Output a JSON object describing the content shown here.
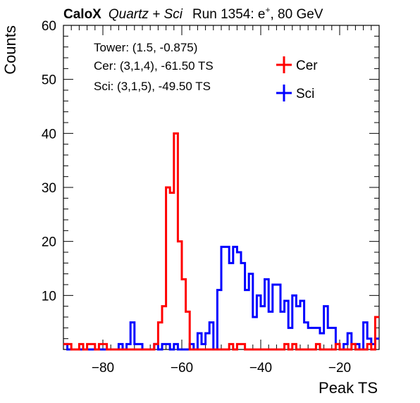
{
  "chart_data": {
    "type": "histogram",
    "title": {
      "experiment": "CaloX",
      "config": "Quartz + Sci",
      "run_prefix": "Run 1354: e",
      "superscript": "+",
      "run_suffix": ", 80 GeV"
    },
    "xlabel": "Peak TS",
    "ylabel": "Counts",
    "xlim": [
      -90,
      -10
    ],
    "ylim": [
      0,
      60
    ],
    "x_ticks": [
      -80,
      -60,
      -40,
      -20
    ],
    "x_tick_labels": [
      "−80",
      "−60",
      "−40",
      "−20"
    ],
    "y_ticks": [
      10,
      20,
      30,
      40,
      50,
      60
    ],
    "y_tick_labels": [
      "10",
      "20",
      "30",
      "40",
      "50",
      "60"
    ],
    "grid": false,
    "legend_position": "top-right",
    "annotations": [
      "Tower: (1.5, -0.875)",
      "Cer: (3,1,4), -61.50 TS",
      "Sci: (3,1,5), -49.50 TS"
    ],
    "bin_start": -90,
    "bin_width": 1,
    "series": [
      {
        "name": "Cer",
        "color": "#ff0000",
        "values": [
          1,
          1,
          0,
          0,
          1,
          0,
          1,
          1,
          0,
          1,
          1,
          0,
          0,
          0,
          0,
          0,
          0,
          0,
          0,
          0,
          0,
          0,
          0,
          1,
          5,
          8,
          30,
          29,
          40,
          20,
          13,
          7,
          0,
          0,
          0,
          0,
          0,
          0,
          0,
          0,
          0,
          0,
          1,
          0,
          1,
          1,
          0,
          0,
          0,
          0,
          0,
          0,
          0,
          0,
          0,
          0,
          1,
          0,
          1,
          0,
          0,
          0,
          0,
          0,
          1,
          0,
          0,
          0,
          0,
          1,
          0,
          0,
          0,
          1,
          0,
          0,
          0,
          1,
          0,
          6
        ]
      },
      {
        "name": "Sci",
        "color": "#0000ff",
        "values": [
          1,
          0,
          0,
          0,
          0,
          0,
          0,
          0,
          0,
          0,
          0,
          0,
          0,
          0,
          1,
          0,
          1,
          5,
          1,
          1,
          0,
          0,
          0,
          1,
          0,
          1,
          1,
          0,
          1,
          0,
          0,
          0,
          1,
          0,
          3,
          1,
          3,
          5,
          0,
          11,
          19,
          19,
          16,
          19,
          18,
          16,
          11,
          14,
          6,
          10,
          8,
          13,
          7,
          12,
          12,
          7,
          9,
          4,
          10,
          8,
          9,
          5,
          4,
          4,
          4,
          3,
          8,
          4,
          4,
          1,
          0,
          1,
          3,
          1,
          1,
          0,
          5,
          2,
          1,
          2
        ]
      }
    ]
  }
}
